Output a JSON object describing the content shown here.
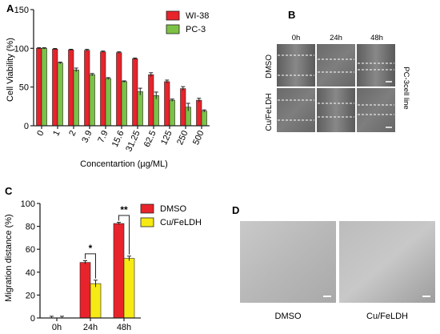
{
  "panels": {
    "A": "A",
    "B": "B",
    "C": "C",
    "D": "D"
  },
  "colors": {
    "wi38": "#e8232b",
    "pc3": "#7cc244",
    "dmso": "#e8232b",
    "cufeldh": "#f5ea14",
    "axis": "#222222"
  },
  "chart_data": [
    {
      "id": "A",
      "type": "bar",
      "categories": [
        "0",
        "1",
        "2",
        "3.9",
        "7.9",
        "15.6",
        "31.25",
        "62.5",
        "125",
        "250",
        "500"
      ],
      "series": [
        {
          "name": "WI-38",
          "values": [
            100,
            99,
            98,
            97.5,
            95.5,
            94.5,
            86.5,
            66,
            57,
            48,
            33
          ],
          "errors": [
            0.8,
            0.8,
            0.8,
            1.2,
            1,
            1,
            1,
            2.5,
            2,
            2.5,
            2.5
          ]
        },
        {
          "name": "PC-3",
          "values": [
            100,
            81,
            72,
            66,
            61,
            57,
            44,
            39,
            33,
            24,
            19
          ],
          "errors": [
            0.8,
            1.2,
            2.5,
            1.5,
            1.2,
            1,
            4.5,
            4.5,
            1.5,
            5,
            1.5
          ]
        }
      ],
      "title": "",
      "xlabel": "Concentartion (µg/ML)",
      "ylabel": "Cell Viability (%)",
      "ylim": [
        0,
        150
      ],
      "yticks": [
        "0",
        "50",
        "100",
        "150"
      ],
      "legend": "top-right"
    },
    {
      "id": "C",
      "type": "bar",
      "categories": [
        "0h",
        "24h",
        "48h"
      ],
      "series": [
        {
          "name": "DMSO",
          "values": [
            0,
            48.5,
            82.5
          ],
          "errors": [
            1.5,
            1.5,
            1
          ]
        },
        {
          "name": "Cu/FeLDH",
          "values": [
            0,
            30,
            52
          ],
          "errors": [
            1.5,
            3,
            2
          ]
        }
      ],
      "significance": [
        {
          "category": "24h",
          "label": "*"
        },
        {
          "category": "48h",
          "label": "**"
        }
      ],
      "title": "",
      "xlabel": "",
      "ylabel": "Migration distance (%)",
      "ylim": [
        0,
        100
      ],
      "yticks": [
        "0",
        "20",
        "40",
        "60",
        "80",
        "100"
      ],
      "legend": "top-right"
    }
  ],
  "panelB": {
    "timepoints": [
      "0h",
      "24h",
      "48h"
    ],
    "rows": [
      "DMSO",
      "Cu/FeLDH"
    ],
    "side_label": "PC-3cell line"
  },
  "panelD": {
    "captions": [
      "DMSO",
      "Cu/FeLDH"
    ]
  }
}
